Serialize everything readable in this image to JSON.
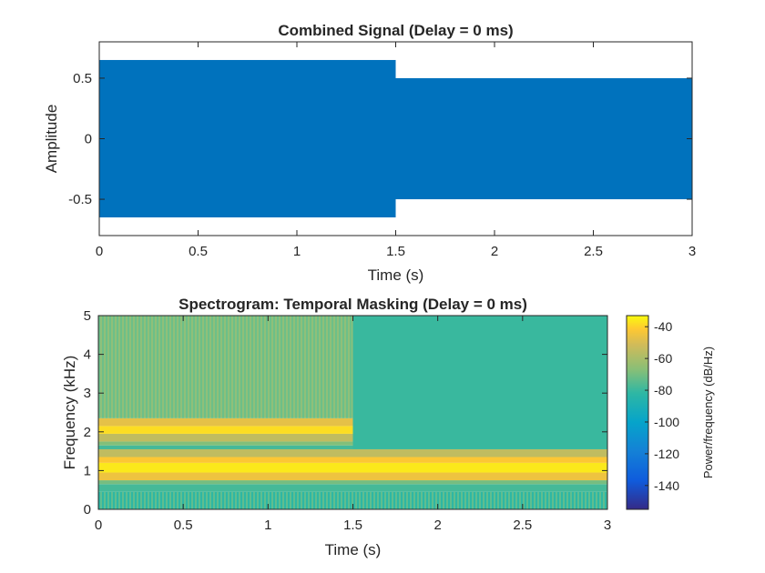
{
  "chart_data": [
    {
      "type": "area",
      "title": "Combined Signal (Delay = 0 ms)",
      "xlabel": "Time (s)",
      "ylabel": "Amplitude",
      "xlim": [
        0,
        3
      ],
      "ylim": [
        -0.8,
        0.8
      ],
      "xticks": [
        0,
        0.5,
        1,
        1.5,
        2,
        2.5,
        3
      ],
      "xtick_labels": [
        "0",
        "0.5",
        "1",
        "1.5",
        "2",
        "2.5",
        "3"
      ],
      "yticks": [
        0.5,
        0,
        -0.5
      ],
      "ytick_labels": [
        "0.5",
        "0",
        "-0.5"
      ],
      "color": "#0072BD",
      "series": [
        {
          "x_start": 0,
          "x_end": 1.5,
          "amplitude": 0.65
        },
        {
          "x_start": 1.5,
          "x_end": 3,
          "amplitude": 0.5
        }
      ],
      "grid": false
    },
    {
      "type": "heatmap",
      "title": "Spectrogram: Temporal Masking (Delay = 0 ms)",
      "xlabel": "Time (s)",
      "ylabel": "Frequency (kHz)",
      "xlim": [
        0,
        3
      ],
      "ylim": [
        0,
        5
      ],
      "xticks": [
        0,
        0.5,
        1,
        1.5,
        2,
        2.5,
        3
      ],
      "xtick_labels": [
        "0",
        "0.5",
        "1",
        "1.5",
        "2",
        "2.5",
        "3"
      ],
      "yticks": [
        0,
        1,
        2,
        3,
        4,
        5
      ],
      "ytick_labels": [
        "0",
        "1",
        "2",
        "3",
        "4",
        "5"
      ],
      "colorbar": {
        "label": "Power/frequency (dB/Hz)",
        "range": [
          -155,
          -33
        ],
        "ticks": [
          -40,
          -60,
          -80,
          -100,
          -120,
          -140
        ],
        "tick_labels": [
          "-40",
          "-60",
          "-80",
          "-100",
          "-120",
          "-140"
        ],
        "colormap": "parula"
      },
      "bands": [
        {
          "t_start": 0,
          "t_end": 3,
          "f_start": 0,
          "f_end": 0.45,
          "power_db": -85,
          "striped": true
        },
        {
          "t_start": 0,
          "t_end": 3,
          "f_start": 0.45,
          "f_end": 0.65,
          "power_db": -78
        },
        {
          "t_start": 0,
          "t_end": 3,
          "f_start": 0.65,
          "f_end": 0.75,
          "power_db": -70
        },
        {
          "t_start": 0,
          "t_end": 3,
          "f_start": 0.75,
          "f_end": 0.95,
          "power_db": -45
        },
        {
          "t_start": 0,
          "t_end": 3,
          "f_start": 0.95,
          "f_end": 1.2,
          "power_db": -36
        },
        {
          "t_start": 0,
          "t_end": 3,
          "f_start": 1.2,
          "f_end": 1.35,
          "power_db": -42
        },
        {
          "t_start": 0,
          "t_end": 3,
          "f_start": 1.35,
          "f_end": 1.55,
          "power_db": -55
        },
        {
          "t_start": 0,
          "t_end": 1.5,
          "f_start": 1.55,
          "f_end": 1.65,
          "power_db": -78
        },
        {
          "t_start": 0,
          "t_end": 1.5,
          "f_start": 1.65,
          "f_end": 1.75,
          "power_db": -68
        },
        {
          "t_start": 0,
          "t_end": 1.5,
          "f_start": 1.75,
          "f_end": 1.95,
          "power_db": -55
        },
        {
          "t_start": 0,
          "t_end": 1.5,
          "f_start": 1.95,
          "f_end": 2.15,
          "power_db": -38
        },
        {
          "t_start": 0,
          "t_end": 1.5,
          "f_start": 2.15,
          "f_end": 2.35,
          "power_db": -47
        },
        {
          "t_start": 0,
          "t_end": 1.5,
          "f_start": 2.35,
          "f_end": 5,
          "power_db": -74,
          "striped": true
        },
        {
          "t_start": 1.5,
          "t_end": 3,
          "f_start": 1.55,
          "f_end": 5,
          "power_db": -80
        }
      ],
      "grid": false
    }
  ]
}
